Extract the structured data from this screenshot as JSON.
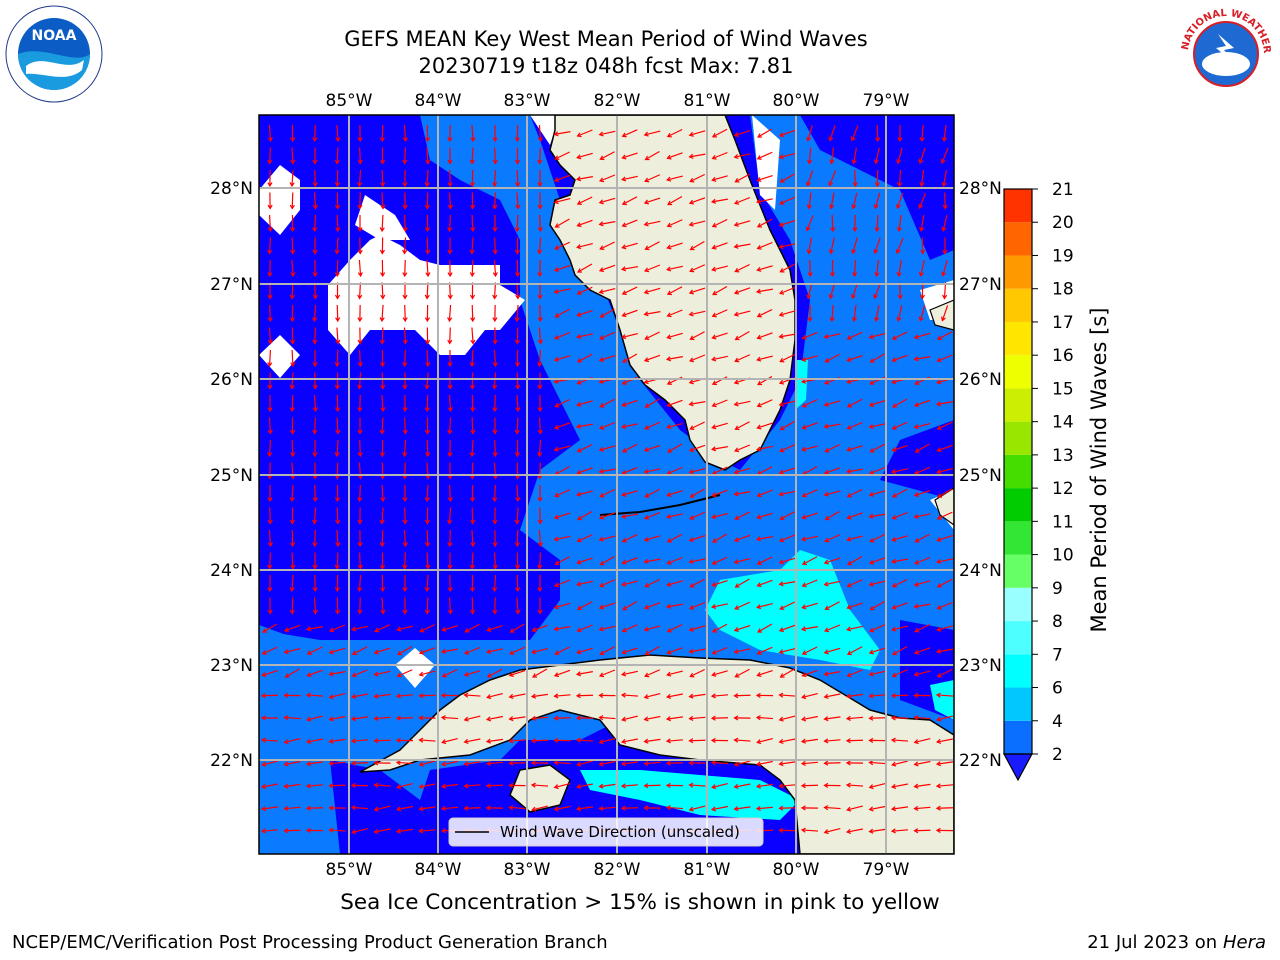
{
  "title_line1": "GEFS MEAN Key West Mean Period of Wind Waves",
  "title_line2": "20230719 t18z 048h fcst   Max: 7.81",
  "lon_labels": [
    "85°W",
    "84°W",
    "83°W",
    "82°W",
    "81°W",
    "80°W",
    "79°W"
  ],
  "lat_labels": [
    "28°N",
    "27°N",
    "26°N",
    "25°N",
    "24°N",
    "23°N",
    "22°N"
  ],
  "legend_label": "Wind Wave Direction (unscaled)",
  "colorbar": {
    "label": "Mean Period of Wind Waves [s]",
    "ticks": [
      "2",
      "4",
      "6",
      "7",
      "8",
      "9",
      "10",
      "11",
      "12",
      "13",
      "14",
      "15",
      "16",
      "17",
      "18",
      "19",
      "20",
      "21"
    ],
    "colors": [
      "#0a6fff",
      "#00c8ff",
      "#00ffff",
      "#4dffff",
      "#99ffff",
      "#66ff66",
      "#33e633",
      "#00cc00",
      "#44dd00",
      "#99e600",
      "#ccee00",
      "#eeff00",
      "#ffe600",
      "#ffc800",
      "#ff9900",
      "#ff6600",
      "#ff3300",
      "#ff0000"
    ],
    "under_color": "#1a1aff"
  },
  "field_colors": {
    "deep": "#0a00ff",
    "mid": "#0a7aff",
    "light": "#00ffff",
    "land": "#eeeedd",
    "no_data": "#ffffff",
    "arrow": "#ff0000"
  },
  "note": "Sea Ice Concentration > 15% is shown in pink to yellow",
  "credit": "NCEP/EMC/Verification Post Processing Product Generation Branch",
  "date_text": "21 Jul 2023 on ",
  "date_machine": "Hera",
  "logos": {
    "left": "NOAA",
    "right": "NATIONAL WEATHER SERVICE"
  }
}
